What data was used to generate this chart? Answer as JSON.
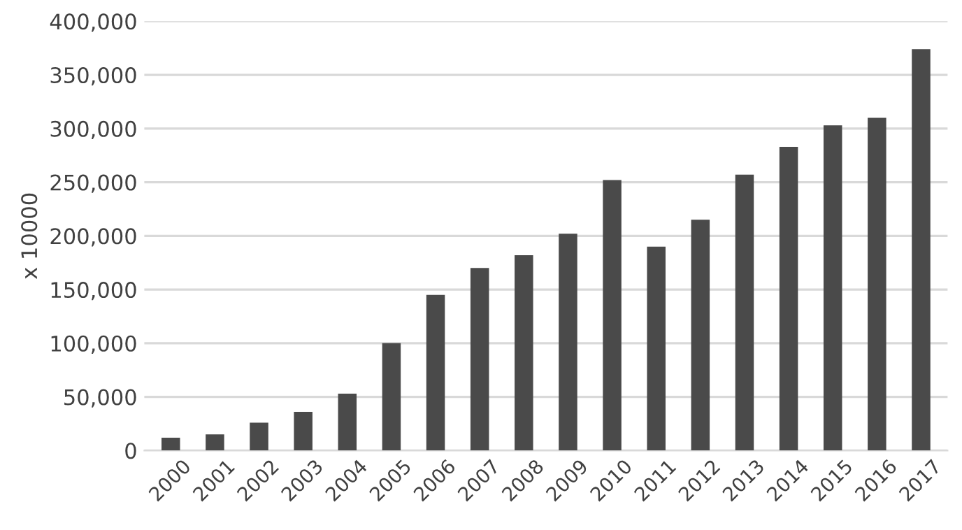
{
  "chart_data": {
    "type": "bar",
    "ylabel": "x 10000",
    "categories": [
      "2000",
      "2001",
      "2002",
      "2003",
      "2004",
      "2005",
      "2006",
      "2007",
      "2008",
      "2009",
      "2010",
      "2011",
      "2012",
      "2013",
      "2014",
      "2015",
      "2016",
      "2017"
    ],
    "values": [
      12000,
      15000,
      26000,
      36000,
      53000,
      100000,
      145000,
      170000,
      182000,
      202000,
      252000,
      190000,
      215000,
      257000,
      283000,
      303000,
      310000,
      374000
    ],
    "color": "#4a4a4a",
    "ylim": [
      0,
      400000
    ],
    "yticks": [
      {
        "value": 0,
        "label": "0"
      },
      {
        "value": 50000,
        "label": "50,000"
      },
      {
        "value": 100000,
        "label": "100,000"
      },
      {
        "value": 150000,
        "label": "150,000"
      },
      {
        "value": 200000,
        "label": "200,000"
      },
      {
        "value": 250000,
        "label": "250,000"
      },
      {
        "value": 300000,
        "label": "300,000"
      },
      {
        "value": 350000,
        "label": "350,000"
      },
      {
        "value": 400000,
        "label": "400,000"
      }
    ],
    "grid": "y"
  }
}
